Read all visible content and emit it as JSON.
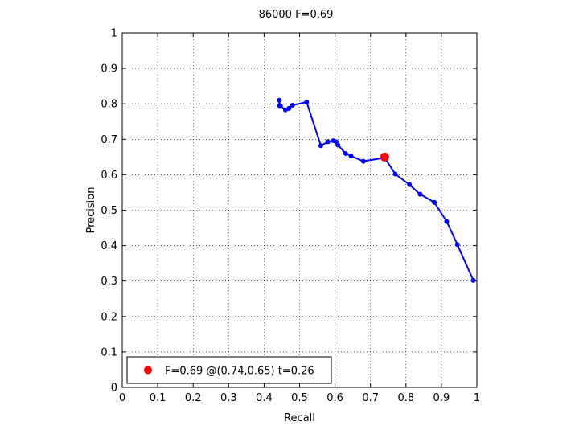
{
  "chart_data": {
    "type": "line",
    "title": "86000 F=0.69",
    "xlabel": "Recall",
    "ylabel": "Precision",
    "xlim": [
      0,
      1
    ],
    "ylim": [
      0,
      1
    ],
    "x_ticks": [
      "0",
      "0.1",
      "0.2",
      "0.3",
      "0.4",
      "0.5",
      "0.6",
      "0.7",
      "0.8",
      "0.9",
      "1"
    ],
    "y_ticks": [
      "0",
      "0.1",
      "0.2",
      "0.3",
      "0.4",
      "0.5",
      "0.6",
      "0.7",
      "0.8",
      "0.9",
      "1"
    ],
    "grid": true,
    "grid_style": "dotted",
    "series": [
      {
        "color": "#0000ff",
        "x": [
          0.443,
          0.443,
          0.446,
          0.46,
          0.47,
          0.48,
          0.52,
          0.56,
          0.58,
          0.595,
          0.603,
          0.608,
          0.63,
          0.645,
          0.68,
          0.74,
          0.77,
          0.81,
          0.84,
          0.88,
          0.915,
          0.945,
          0.99
        ],
        "y": [
          0.81,
          0.795,
          0.795,
          0.783,
          0.787,
          0.796,
          0.805,
          0.682,
          0.693,
          0.696,
          0.693,
          0.684,
          0.66,
          0.653,
          0.638,
          0.648,
          0.602,
          0.572,
          0.545,
          0.522,
          0.468,
          0.403,
          0.302
        ]
      }
    ],
    "best_point": {
      "x": 0.74,
      "y": 0.65,
      "color": "#ff0000"
    },
    "legend": {
      "position": "bottom-left",
      "label": "F=0.69 @(0.74,0.65) t=0.26"
    }
  }
}
